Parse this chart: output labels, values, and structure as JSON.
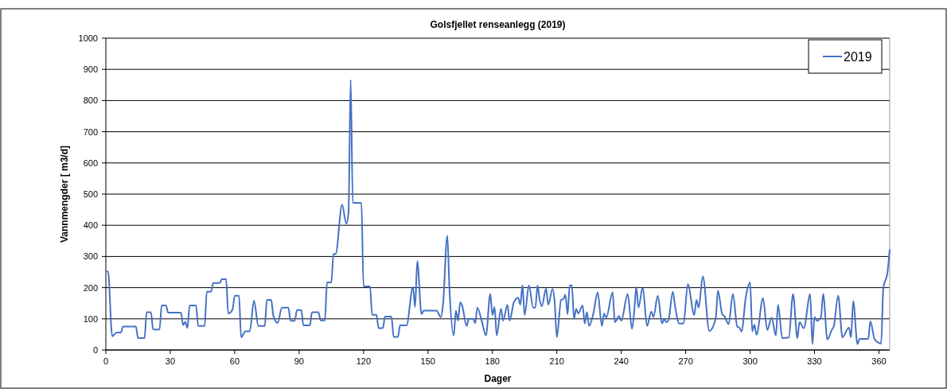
{
  "chart_data": {
    "type": "line",
    "title": "Golsfjellet renseanlegg (2019)",
    "xlabel": "Dager",
    "ylabel": "Vannmengder [ m3/d]",
    "x": [
      0,
      1,
      3,
      5,
      7,
      8,
      14,
      15,
      18,
      19,
      21,
      22,
      25,
      26,
      28,
      29,
      35,
      36,
      37,
      38,
      39,
      42,
      43,
      46,
      47,
      49,
      50,
      53,
      54,
      56,
      57,
      59,
      60,
      62,
      63,
      65,
      67,
      69,
      71,
      74,
      75,
      77,
      78,
      80,
      82,
      85,
      86,
      88,
      89,
      91,
      92,
      95,
      96,
      99,
      100,
      102,
      103,
      105,
      106,
      107,
      110,
      112,
      113,
      114,
      115,
      119,
      120,
      123,
      124,
      126,
      127,
      129,
      130,
      133,
      134,
      136,
      137,
      140,
      143,
      144,
      145,
      147,
      148,
      154,
      156,
      157,
      159,
      160,
      162,
      163,
      164,
      165,
      166,
      168,
      169,
      171,
      172,
      173,
      175,
      177,
      179,
      180,
      181,
      182,
      184,
      185,
      187,
      188,
      190,
      192,
      193,
      194,
      195,
      197,
      199,
      200,
      201,
      202,
      203,
      205,
      206,
      208,
      209,
      210,
      212,
      213,
      214,
      215,
      216,
      217,
      218,
      219,
      220,
      222,
      223,
      224,
      225,
      227,
      229,
      231,
      232,
      233,
      236,
      237,
      239,
      240,
      243,
      245,
      246,
      247,
      248,
      250,
      252,
      254,
      255,
      257,
      259,
      260,
      261,
      262,
      264,
      265,
      267,
      269,
      271,
      274,
      275,
      276,
      278,
      281,
      284,
      285,
      287,
      288,
      290,
      292,
      294,
      295,
      296,
      298,
      300,
      301,
      302,
      303,
      306,
      308,
      310,
      312,
      313,
      315,
      318,
      320,
      322,
      323,
      325,
      328,
      329,
      330,
      331,
      333,
      334,
      336,
      338,
      339,
      341,
      343,
      346,
      347,
      348,
      350,
      351,
      355,
      356,
      358,
      361,
      362,
      364,
      365
    ],
    "series": [
      {
        "name": "2019",
        "color": "#4472c4",
        "values": [
          252,
          252,
          44,
          56,
          56,
          75,
          75,
          38,
          38,
          121,
          121,
          66,
          66,
          143,
          143,
          120,
          120,
          80,
          90,
          71,
          143,
          143,
          77,
          77,
          187,
          187,
          215,
          215,
          227,
          227,
          117,
          130,
          174,
          174,
          41,
          60,
          60,
          158,
          77,
          77,
          161,
          161,
          110,
          87,
          136,
          136,
          94,
          94,
          128,
          128,
          79,
          79,
          121,
          121,
          95,
          95,
          217,
          217,
          308,
          308,
          466,
          405,
          441,
          866,
          472,
          472,
          204,
          204,
          113,
          113,
          70,
          70,
          107,
          107,
          42,
          42,
          79,
          79,
          202,
          138,
          285,
          115,
          126,
          126,
          105,
          145,
          367,
          196,
          47,
          126,
          94,
          153,
          140,
          77,
          100,
          100,
          86,
          136,
          94,
          47,
          180,
          112,
          138,
          47,
          132,
          94,
          145,
          94,
          153,
          168,
          145,
          208,
          112,
          207,
          136,
          136,
          207,
          161,
          140,
          197,
          145,
          196,
          153,
          41,
          161,
          163,
          177,
          115,
          207,
          207,
          100,
          132,
          117,
          143,
          85,
          122,
          77,
          117,
          185,
          77,
          117,
          104,
          185,
          89,
          109,
          94,
          179,
          68,
          121,
          202,
          136,
          201,
          77,
          123,
          106,
          174,
          85,
          100,
          89,
          96,
          187,
          143,
          85,
          85,
          211,
          112,
          161,
          136,
          236,
          61,
          102,
          191,
          115,
          109,
          83,
          180,
          75,
          72,
          60,
          170,
          217,
          60,
          81,
          49,
          166,
          64,
          104,
          47,
          145,
          38,
          40,
          179,
          38,
          89,
          70,
          179,
          19,
          106,
          94,
          106,
          180,
          34,
          64,
          77,
          174,
          41,
          72,
          41,
          157,
          19,
          36,
          36,
          92,
          34,
          21,
          196,
          251,
          323
        ]
      }
    ],
    "xlim": [
      0,
      365
    ],
    "xticks": [
      0,
      30,
      60,
      90,
      120,
      150,
      180,
      210,
      240,
      270,
      300,
      330,
      360
    ],
    "ylim": [
      0,
      1000
    ],
    "yticks": [
      0,
      100,
      200,
      300,
      400,
      500,
      600,
      700,
      800,
      900,
      1000
    ],
    "grid": "y",
    "legend": "top right"
  }
}
